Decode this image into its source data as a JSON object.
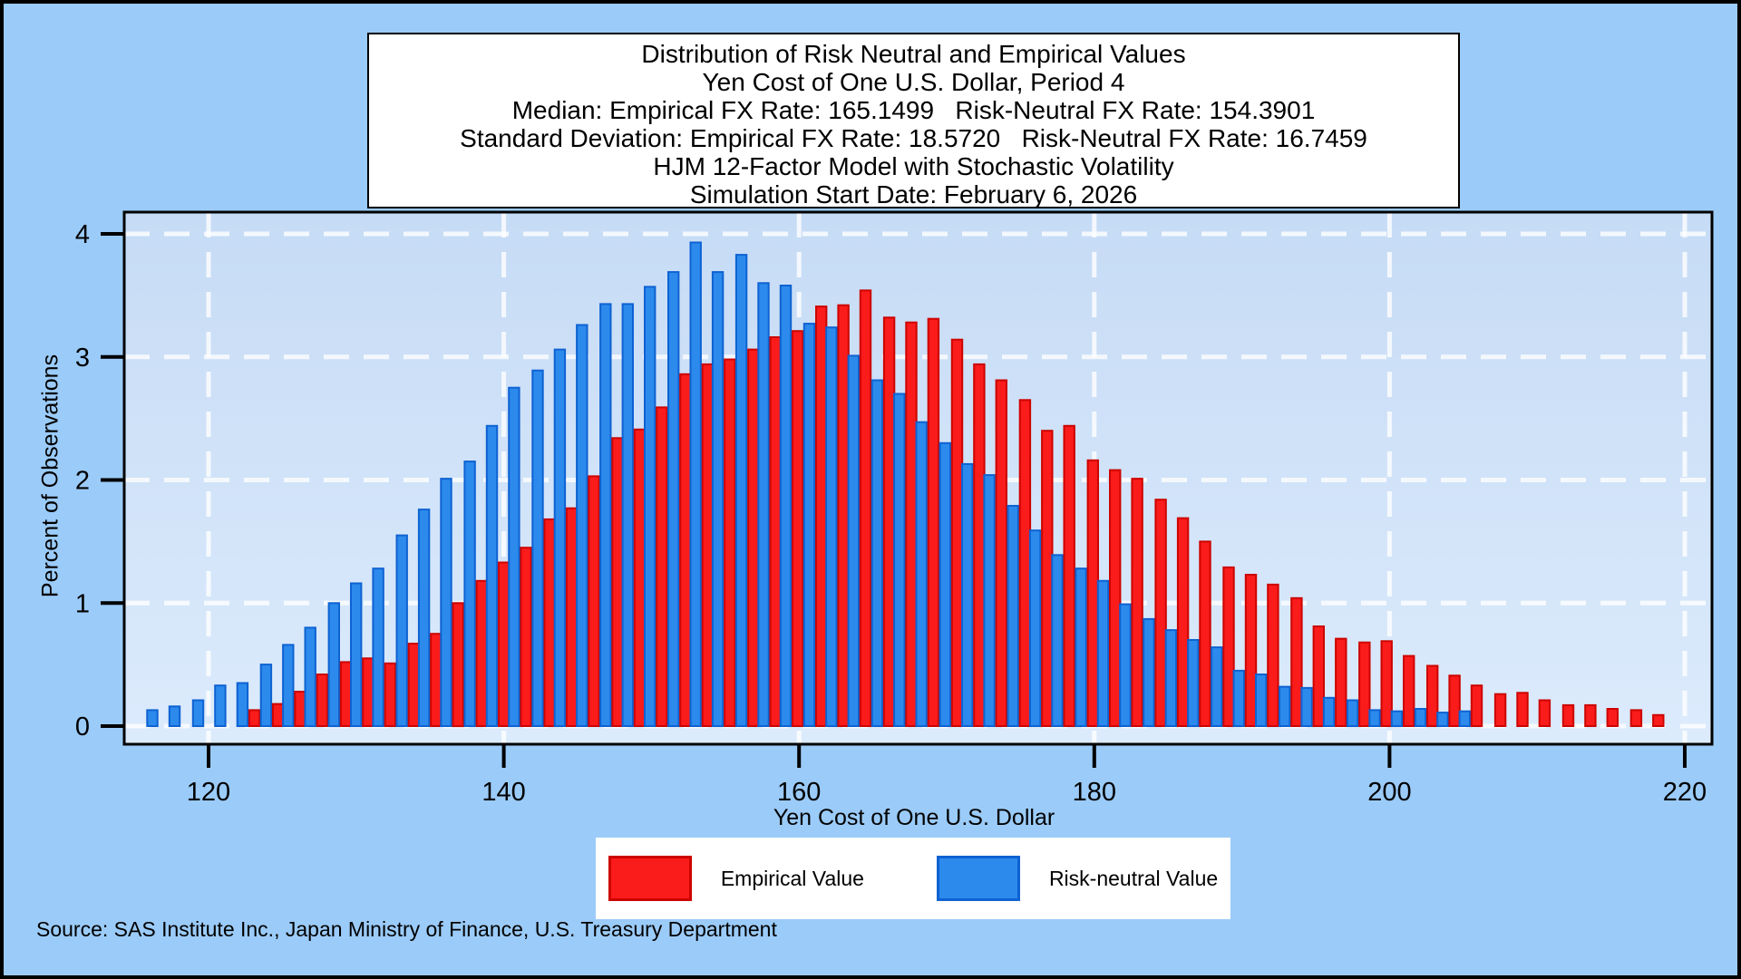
{
  "title_box": {
    "lines": [
      "Distribution of Risk Neutral and Empirical Values",
      "Yen Cost of One U.S. Dollar, Period 4",
      "Median: Empirical FX Rate: 165.1499   Risk-Neutral FX Rate: 154.3901",
      "Standard Deviation: Empirical FX Rate: 18.5720   Risk-Neutral FX Rate: 16.7459",
      "HJM 12-Factor Model with Stochastic Volatility",
      "Simulation Start Date: February 6, 2026"
    ]
  },
  "y_axis": {
    "label": "Percent of Observations",
    "ticks": [
      0,
      1,
      2,
      3,
      4
    ]
  },
  "x_axis": {
    "label": "Yen Cost of One U.S. Dollar",
    "ticks": [
      120,
      140,
      160,
      180,
      200,
      220
    ]
  },
  "legend": {
    "items": [
      {
        "label": "Empirical Value",
        "color": "#FA1B1B",
        "border": "#CC0400"
      },
      {
        "label": "Risk-neutral Value",
        "color": "#2C8AEC",
        "border": "#0E62D2"
      }
    ]
  },
  "source": "Source: SAS Institute Inc., Japan Ministry of Finance, U.S. Treasury Department",
  "colors": {
    "outer_background": "#9BCBF8",
    "plot_background_top": "#C6DBF5",
    "plot_background_bottom": "#DCEBFC",
    "gridline": "#FFFFFF",
    "frame": "#000000",
    "empirical_fill": "#FA1B1B",
    "empirical_stroke": "#CC0400",
    "risk_neutral_fill": "#2C8AEC",
    "risk_neutral_stroke": "#0E62D2"
  },
  "chart_data": {
    "type": "bar",
    "title": "Distribution of Risk Neutral and Empirical Values",
    "subtitle": "Yen Cost of One U.S. Dollar, Period 4",
    "xlabel": "Yen Cost of One U.S. Dollar",
    "ylabel": "Percent of Observations",
    "xlim": [
      114.3,
      221.8
    ],
    "ylim": [
      0,
      4.18
    ],
    "grid": true,
    "legend_position": "bottom",
    "stats": {
      "median_empirical": 165.1499,
      "median_risk_neutral": 154.3901,
      "std_empirical": 18.572,
      "std_risk_neutral": 16.7459
    },
    "series": [
      {
        "name": "Risk-neutral Value",
        "key": "risk_neutral",
        "color": "#2C8AEC"
      },
      {
        "name": "Empirical Value",
        "key": "empirical",
        "color": "#FA1B1B"
      }
    ],
    "bins": [
      {
        "yen": 116.6,
        "risk_neutral": 0.13,
        "empirical": 0
      },
      {
        "yen": 118.1,
        "risk_neutral": 0.16,
        "empirical": 0
      },
      {
        "yen": 119.7,
        "risk_neutral": 0.21,
        "empirical": 0
      },
      {
        "yen": 121.2,
        "risk_neutral": 0.33,
        "empirical": 0
      },
      {
        "yen": 122.7,
        "risk_neutral": 0.35,
        "empirical": 0.13
      },
      {
        "yen": 124.3,
        "risk_neutral": 0.5,
        "empirical": 0.18
      },
      {
        "yen": 125.8,
        "risk_neutral": 0.66,
        "empirical": 0.28
      },
      {
        "yen": 127.3,
        "risk_neutral": 0.8,
        "empirical": 0.42
      },
      {
        "yen": 128.9,
        "risk_neutral": 1.0,
        "empirical": 0.52
      },
      {
        "yen": 130.4,
        "risk_neutral": 1.16,
        "empirical": 0.55
      },
      {
        "yen": 131.9,
        "risk_neutral": 1.28,
        "empirical": 0.51
      },
      {
        "yen": 133.5,
        "risk_neutral": 1.55,
        "empirical": 0.67
      },
      {
        "yen": 135.0,
        "risk_neutral": 1.76,
        "empirical": 0.75
      },
      {
        "yen": 136.5,
        "risk_neutral": 2.01,
        "empirical": 1.0
      },
      {
        "yen": 138.1,
        "risk_neutral": 2.15,
        "empirical": 1.18
      },
      {
        "yen": 139.6,
        "risk_neutral": 2.44,
        "empirical": 1.33
      },
      {
        "yen": 141.1,
        "risk_neutral": 2.75,
        "empirical": 1.45
      },
      {
        "yen": 142.7,
        "risk_neutral": 2.89,
        "empirical": 1.68
      },
      {
        "yen": 144.2,
        "risk_neutral": 3.06,
        "empirical": 1.77
      },
      {
        "yen": 145.7,
        "risk_neutral": 3.26,
        "empirical": 2.03
      },
      {
        "yen": 147.3,
        "risk_neutral": 3.43,
        "empirical": 2.34
      },
      {
        "yen": 148.8,
        "risk_neutral": 3.43,
        "empirical": 2.41
      },
      {
        "yen": 150.3,
        "risk_neutral": 3.57,
        "empirical": 2.59
      },
      {
        "yen": 151.9,
        "risk_neutral": 3.69,
        "empirical": 2.86
      },
      {
        "yen": 153.4,
        "risk_neutral": 3.93,
        "empirical": 2.94
      },
      {
        "yen": 154.9,
        "risk_neutral": 3.69,
        "empirical": 2.98
      },
      {
        "yen": 156.5,
        "risk_neutral": 3.83,
        "empirical": 3.06
      },
      {
        "yen": 158.0,
        "risk_neutral": 3.6,
        "empirical": 3.16
      },
      {
        "yen": 159.5,
        "risk_neutral": 3.58,
        "empirical": 3.21
      },
      {
        "yen": 161.1,
        "risk_neutral": 3.27,
        "empirical": 3.41
      },
      {
        "yen": 162.6,
        "risk_neutral": 3.24,
        "empirical": 3.42
      },
      {
        "yen": 164.1,
        "risk_neutral": 3.01,
        "empirical": 3.54
      },
      {
        "yen": 165.7,
        "risk_neutral": 2.81,
        "empirical": 3.32
      },
      {
        "yen": 167.2,
        "risk_neutral": 2.7,
        "empirical": 3.28
      },
      {
        "yen": 168.7,
        "risk_neutral": 2.47,
        "empirical": 3.31
      },
      {
        "yen": 170.3,
        "risk_neutral": 2.3,
        "empirical": 3.14
      },
      {
        "yen": 171.8,
        "risk_neutral": 2.13,
        "empirical": 2.94
      },
      {
        "yen": 173.3,
        "risk_neutral": 2.04,
        "empirical": 2.81
      },
      {
        "yen": 174.9,
        "risk_neutral": 1.79,
        "empirical": 2.65
      },
      {
        "yen": 176.4,
        "risk_neutral": 1.59,
        "empirical": 2.4
      },
      {
        "yen": 177.9,
        "risk_neutral": 1.39,
        "empirical": 2.44
      },
      {
        "yen": 179.5,
        "risk_neutral": 1.28,
        "empirical": 2.16
      },
      {
        "yen": 181.0,
        "risk_neutral": 1.18,
        "empirical": 2.08
      },
      {
        "yen": 182.5,
        "risk_neutral": 0.99,
        "empirical": 2.01
      },
      {
        "yen": 184.1,
        "risk_neutral": 0.87,
        "empirical": 1.84
      },
      {
        "yen": 185.6,
        "risk_neutral": 0.78,
        "empirical": 1.69
      },
      {
        "yen": 187.1,
        "risk_neutral": 0.7,
        "empirical": 1.5
      },
      {
        "yen": 188.7,
        "risk_neutral": 0.64,
        "empirical": 1.29
      },
      {
        "yen": 190.2,
        "risk_neutral": 0.45,
        "empirical": 1.23
      },
      {
        "yen": 191.7,
        "risk_neutral": 0.42,
        "empirical": 1.15
      },
      {
        "yen": 193.3,
        "risk_neutral": 0.32,
        "empirical": 1.04
      },
      {
        "yen": 194.8,
        "risk_neutral": 0.31,
        "empirical": 0.81
      },
      {
        "yen": 196.3,
        "risk_neutral": 0.23,
        "empirical": 0.71
      },
      {
        "yen": 197.9,
        "risk_neutral": 0.21,
        "empirical": 0.68
      },
      {
        "yen": 199.4,
        "risk_neutral": 0.13,
        "empirical": 0.69
      },
      {
        "yen": 200.9,
        "risk_neutral": 0.12,
        "empirical": 0.57
      },
      {
        "yen": 202.5,
        "risk_neutral": 0.14,
        "empirical": 0.49
      },
      {
        "yen": 204.0,
        "risk_neutral": 0.11,
        "empirical": 0.41
      },
      {
        "yen": 205.5,
        "risk_neutral": 0.12,
        "empirical": 0.33
      },
      {
        "yen": 207.1,
        "risk_neutral": 0,
        "empirical": 0.26
      },
      {
        "yen": 208.6,
        "risk_neutral": 0,
        "empirical": 0.27
      },
      {
        "yen": 210.1,
        "risk_neutral": 0,
        "empirical": 0.21
      },
      {
        "yen": 211.7,
        "risk_neutral": 0,
        "empirical": 0.17
      },
      {
        "yen": 213.2,
        "risk_neutral": 0,
        "empirical": 0.17
      },
      {
        "yen": 214.7,
        "risk_neutral": 0,
        "empirical": 0.14
      },
      {
        "yen": 216.3,
        "risk_neutral": 0,
        "empirical": 0.13
      },
      {
        "yen": 217.8,
        "risk_neutral": 0,
        "empirical": 0.09
      }
    ]
  }
}
